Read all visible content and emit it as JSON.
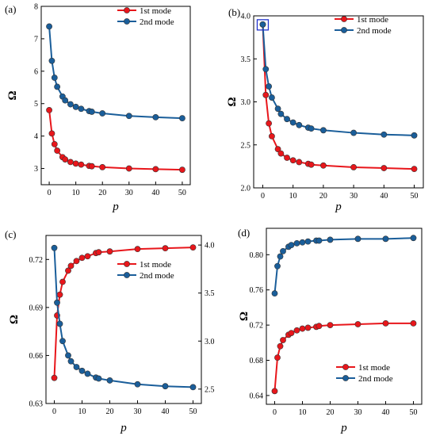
{
  "chart_data": [
    {
      "type": "line",
      "panel_label": "(a)",
      "xlabel": "p",
      "ylabel": "Ω",
      "xlim": [
        -3,
        53
      ],
      "ylim": [
        2.5,
        8
      ],
      "xticks": [
        0,
        10,
        20,
        30,
        40,
        50
      ],
      "yticks": [
        3,
        4,
        5,
        6,
        7,
        8
      ],
      "legend": "top-right",
      "series": [
        {
          "name": "1st mode",
          "color": "#e8161b",
          "x": [
            0,
            1,
            2,
            3,
            5,
            6,
            8,
            10,
            12,
            15,
            16,
            20,
            30,
            40,
            50
          ],
          "y": [
            4.8,
            4.08,
            3.75,
            3.55,
            3.35,
            3.28,
            3.2,
            3.15,
            3.12,
            3.08,
            3.07,
            3.04,
            3.0,
            2.98,
            2.96
          ]
        },
        {
          "name": "2nd mode",
          "color": "#1a5e9a",
          "x": [
            0,
            1,
            2,
            3,
            5,
            6,
            8,
            10,
            12,
            15,
            16,
            20,
            30,
            40,
            50
          ],
          "y": [
            7.38,
            6.32,
            5.8,
            5.52,
            5.22,
            5.1,
            4.98,
            4.9,
            4.84,
            4.77,
            4.75,
            4.7,
            4.62,
            4.58,
            4.55
          ]
        }
      ]
    },
    {
      "type": "line",
      "panel_label": "(b)",
      "xlabel": "p",
      "ylabel": "Ω",
      "xlim": [
        -3,
        53
      ],
      "ylim": [
        2.0,
        4.0
      ],
      "xticks": [
        0,
        10,
        20,
        30,
        40,
        50
      ],
      "yticks": [
        2.0,
        2.5,
        3.0,
        3.5,
        4.0
      ],
      "ytick_labels": [
        "2.0",
        "2.5",
        "3.0",
        "3.5",
        "4.0"
      ],
      "legend": "top-right",
      "highlight_box": {
        "x": 0,
        "y": 3.9
      },
      "series": [
        {
          "name": "1st mode",
          "color": "#e8161b",
          "x": [
            0,
            1,
            2,
            3,
            5,
            6,
            8,
            10,
            12,
            15,
            16,
            20,
            30,
            40,
            50
          ],
          "y": [
            3.9,
            3.08,
            2.75,
            2.6,
            2.45,
            2.4,
            2.35,
            2.32,
            2.3,
            2.28,
            2.27,
            2.26,
            2.24,
            2.23,
            2.22
          ]
        },
        {
          "name": "2nd mode",
          "color": "#1a5e9a",
          "x": [
            0,
            1,
            2,
            3,
            5,
            6,
            8,
            10,
            12,
            15,
            16,
            20,
            30,
            40,
            50
          ],
          "y": [
            3.9,
            3.38,
            3.18,
            3.05,
            2.92,
            2.86,
            2.8,
            2.76,
            2.73,
            2.7,
            2.69,
            2.67,
            2.64,
            2.62,
            2.61
          ]
        }
      ]
    },
    {
      "type": "line",
      "panel_label": "(c)",
      "xlabel": "p",
      "ylabel": "Ω",
      "xlim": [
        -3,
        53
      ],
      "ylim": [
        0.63,
        0.735
      ],
      "xticks": [
        0,
        10,
        20,
        30,
        40,
        50
      ],
      "yticks": [
        0.63,
        0.66,
        0.69,
        0.72
      ],
      "ytick_labels": [
        "0.63",
        "0.66",
        "0.69",
        "0.72"
      ],
      "y2lim": [
        2.35,
        4.1
      ],
      "y2ticks": [
        2.5,
        3.0,
        3.5,
        4.0
      ],
      "y2tick_labels": [
        "2.5",
        "3.0",
        "3.5",
        "4.0"
      ],
      "legend": "center-right",
      "series": [
        {
          "name": "1st mode",
          "color": "#e8161b",
          "axis": "left",
          "x": [
            0,
            1,
            2,
            3,
            5,
            6,
            8,
            10,
            12,
            15,
            16,
            20,
            30,
            40,
            50
          ],
          "y": [
            0.646,
            0.685,
            0.698,
            0.706,
            0.713,
            0.716,
            0.719,
            0.721,
            0.722,
            0.724,
            0.7245,
            0.725,
            0.7265,
            0.727,
            0.7275
          ]
        },
        {
          "name": "2nd mode",
          "color": "#1a5e9a",
          "axis": "right",
          "x": [
            0,
            1,
            2,
            3,
            5,
            6,
            8,
            10,
            12,
            15,
            16,
            20,
            30,
            40,
            50
          ],
          "y": [
            3.97,
            3.4,
            3.18,
            3.0,
            2.85,
            2.79,
            2.73,
            2.69,
            2.66,
            2.62,
            2.61,
            2.59,
            2.55,
            2.53,
            2.52
          ]
        }
      ]
    },
    {
      "type": "line",
      "panel_label": "(d)",
      "xlabel": "p",
      "ylabel": "Ω",
      "xlim": [
        -3,
        53
      ],
      "ylim": [
        0.63,
        0.83
      ],
      "xticks": [
        0,
        10,
        20,
        30,
        40,
        50
      ],
      "yticks": [
        0.64,
        0.68,
        0.72,
        0.76,
        0.8
      ],
      "ytick_labels": [
        "0.64",
        "0.68",
        "0.72",
        "0.76",
        "0.80"
      ],
      "legend": "bottom-right",
      "series": [
        {
          "name": "1st mode",
          "color": "#e8161b",
          "x": [
            0,
            1,
            2,
            3,
            5,
            6,
            8,
            10,
            12,
            15,
            16,
            20,
            30,
            40,
            50
          ],
          "y": [
            0.645,
            0.683,
            0.696,
            0.703,
            0.709,
            0.711,
            0.714,
            0.716,
            0.717,
            0.718,
            0.719,
            0.72,
            0.721,
            0.722,
            0.722
          ]
        },
        {
          "name": "2nd mode",
          "color": "#1a5e9a",
          "x": [
            0,
            1,
            2,
            3,
            5,
            6,
            8,
            10,
            12,
            15,
            16,
            20,
            30,
            40,
            50
          ],
          "y": [
            0.756,
            0.787,
            0.798,
            0.804,
            0.809,
            0.811,
            0.813,
            0.814,
            0.815,
            0.816,
            0.816,
            0.817,
            0.818,
            0.818,
            0.819
          ]
        }
      ]
    }
  ]
}
